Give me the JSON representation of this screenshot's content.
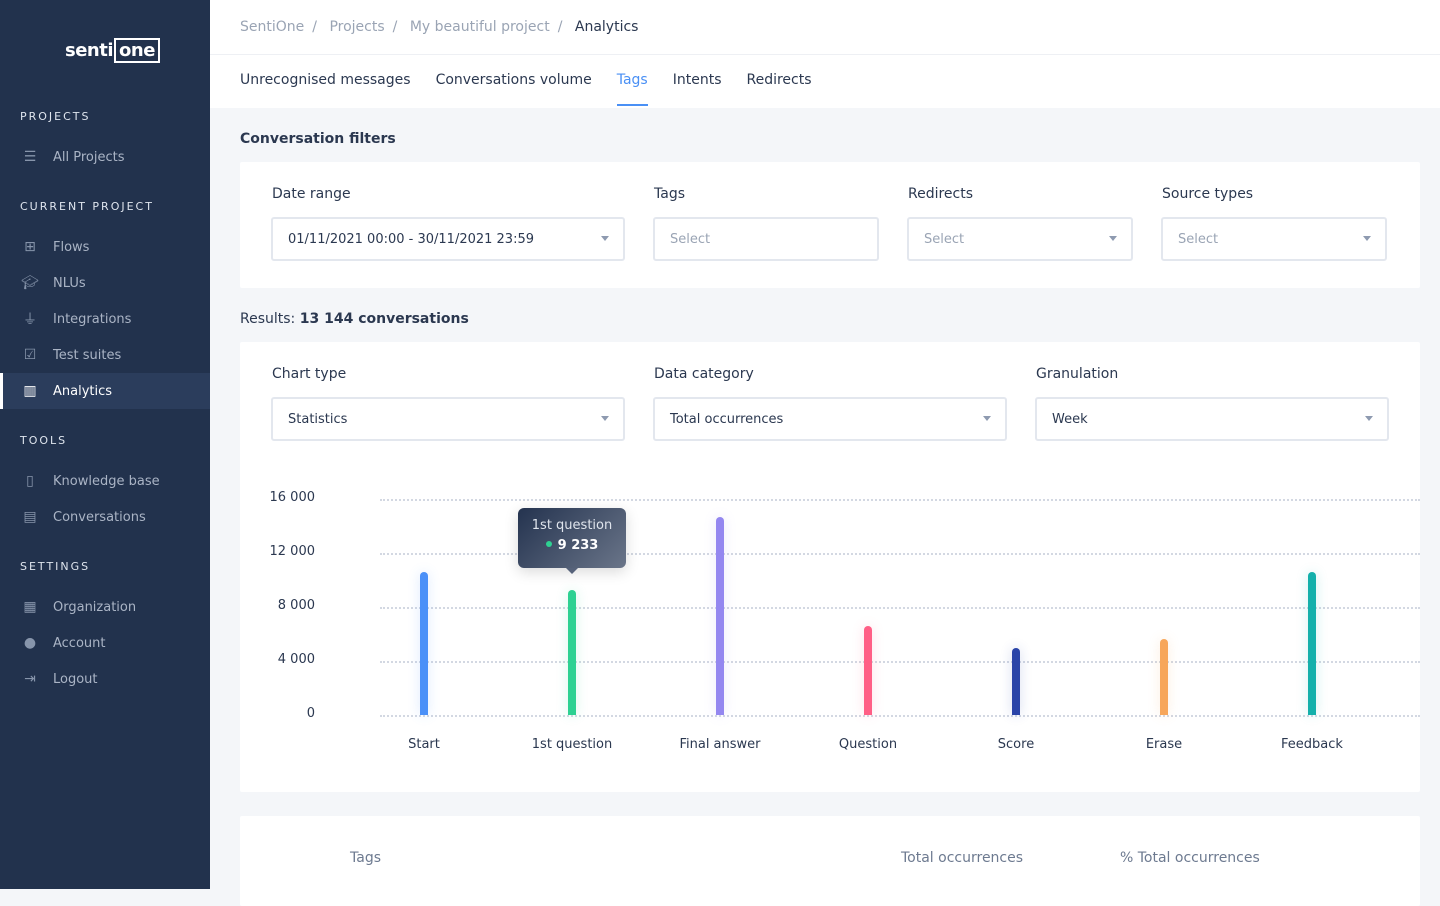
{
  "logo": {
    "text_a": "senti",
    "text_b": "one"
  },
  "sidebar": {
    "sections": {
      "projects": "PROJECTS",
      "current": "CURRENT PROJECT",
      "tools": "TOOLS",
      "settings": "SETTINGS"
    },
    "items": [
      {
        "label": "All Projects",
        "icon": "list-icon"
      },
      {
        "label": "Flows",
        "icon": "flows-icon"
      },
      {
        "label": "NLUs",
        "icon": "graduation-cap-icon"
      },
      {
        "label": "Integrations",
        "icon": "plug-icon"
      },
      {
        "label": "Test suites",
        "icon": "checklist-icon"
      },
      {
        "label": "Analytics",
        "icon": "bar-chart-icon",
        "active": true
      },
      {
        "label": "Knowledge base",
        "icon": "book-icon"
      },
      {
        "label": "Conversations",
        "icon": "message-icon"
      },
      {
        "label": "Organization",
        "icon": "building-icon"
      },
      {
        "label": "Account",
        "icon": "user-icon"
      },
      {
        "label": "Logout",
        "icon": "logout-icon"
      }
    ]
  },
  "breadcrumb": [
    "SentiOne",
    "Projects",
    "My beautiful project",
    "Analytics"
  ],
  "tabs": [
    "Unrecognised messages",
    "Conversations volume",
    "Tags",
    "Intents",
    "Redirects"
  ],
  "active_tab": "Tags",
  "filters": {
    "title": "Conversation filters",
    "date_label": "Date range",
    "date_value": "01/11/2021 00:00 - 30/11/2021 23:59",
    "tags_label": "Tags",
    "tags_placeholder": "Select",
    "redirects_label": "Redirects",
    "redirects_placeholder": "Select",
    "source_label": "Source types",
    "source_placeholder": "Select"
  },
  "results": {
    "prefix": "Results:",
    "value": "13 144 conversations"
  },
  "chart_controls": {
    "type_label": "Chart type",
    "type_value": "Statistics",
    "category_label": "Data category",
    "category_value": "Total occurrences",
    "gran_label": "Granulation",
    "gran_value": "Week"
  },
  "tooltip": {
    "title": "1st question",
    "value": "9 233",
    "color": "#2ed192"
  },
  "chart_data": {
    "type": "bar",
    "categories": [
      "Start",
      "1st question",
      "Final answer",
      "Question",
      "Score",
      "Erase",
      "Feedback"
    ],
    "values": [
      10600,
      9233,
      14700,
      6600,
      5000,
      5600,
      10600
    ],
    "colors": [
      "#4a90f8",
      "#2ed192",
      "#9487f0",
      "#ff5f86",
      "#2a44a8",
      "#f7a65a",
      "#14b0ab"
    ],
    "yticks": [
      "0",
      "4 000",
      "8 000",
      "12 000",
      "16 000"
    ],
    "ylim": [
      0,
      16000
    ],
    "grid": true
  },
  "table": {
    "headers": [
      "Tags",
      "Total occurrences",
      "% Total occurrences"
    ]
  }
}
